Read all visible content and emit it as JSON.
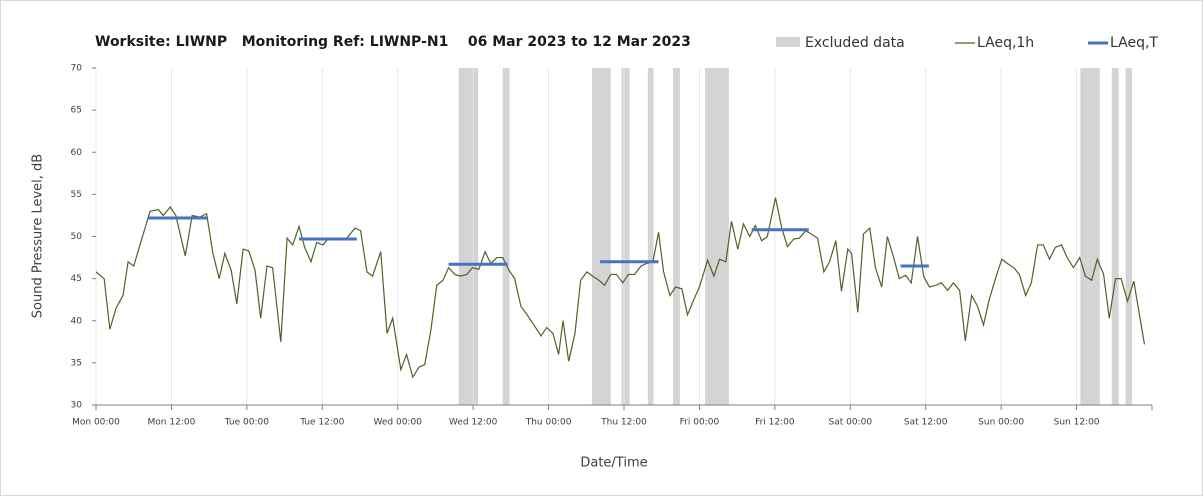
{
  "chart_data": {
    "type": "line",
    "title": "Worksite: LIWNP   Monitoring Ref: LIWNP-N1    06 Mar 2023 to 12 Mar 2023",
    "x_label": "Date/Time",
    "y_label": "Sound Pressure Level, dB",
    "xlim": [
      0,
      168
    ],
    "xticks": [
      {
        "value": 0,
        "label": "Mon 00:00"
      },
      {
        "value": 12,
        "label": "Mon 12:00"
      },
      {
        "value": 24,
        "label": "Tue 00:00"
      },
      {
        "value": 36,
        "label": "Tue 12:00"
      },
      {
        "value": 48,
        "label": "Wed 00:00"
      },
      {
        "value": 60,
        "label": "Wed 12:00"
      },
      {
        "value": 72,
        "label": "Thu 00:00"
      },
      {
        "value": 84,
        "label": "Thu 12:00"
      },
      {
        "value": 96,
        "label": "Fri 00:00"
      },
      {
        "value": 108,
        "label": "Fri 12:00"
      },
      {
        "value": 120,
        "label": "Sat 00:00"
      },
      {
        "value": 132,
        "label": "Sat 12:00"
      },
      {
        "value": 144,
        "label": "Sun 00:00"
      },
      {
        "value": 156,
        "label": "Sun 12:00"
      }
    ],
    "ylim": [
      30,
      70
    ],
    "yticks": [
      30,
      35,
      40,
      45,
      50,
      55,
      60,
      65,
      70
    ],
    "grid": "x",
    "excluded": {
      "name": "Excluded data",
      "color": "#d4d4d4",
      "ranges": [
        [
          57.7,
          60.8
        ],
        [
          64.7,
          65.8
        ],
        [
          78.9,
          81.9
        ],
        [
          83.6,
          84.9
        ],
        [
          87.8,
          88.7
        ],
        [
          91.8,
          92.9
        ],
        [
          96.9,
          100.7
        ],
        [
          156.6,
          159.7
        ],
        [
          161.6,
          162.7
        ],
        [
          163.8,
          164.8
        ]
      ]
    },
    "series": [
      {
        "name": "LAeq,1h",
        "color": "#4f6228",
        "x": [
          0,
          1.3,
          2.2,
          3.2,
          4.3,
          5.1,
          6.0,
          7.0,
          8.6,
          9.9,
          10.7,
          11.8,
          12.7,
          14.2,
          15.3,
          16.5,
          17.6,
          18.6,
          19.6,
          20.5,
          21.5,
          22.4,
          23.4,
          24.3,
          25.3,
          26.2,
          27.2,
          28.1,
          29.4,
          30.4,
          31.3,
          32.3,
          33.2,
          34.2,
          35.1,
          36.1,
          37.0,
          38.0,
          39.9,
          41.2,
          42.1,
          43.1,
          44.0,
          45.3,
          46.3,
          47.2,
          48.5,
          49.4,
          50.4,
          51.4,
          52.3,
          53.3,
          54.2,
          55.2,
          56.1,
          57.1,
          58.0,
          59.0,
          59.9,
          60.9,
          61.9,
          62.8,
          63.8,
          64.7,
          65.7,
          66.6,
          67.6,
          68.5,
          69.5,
          70.8,
          71.7,
          72.7,
          73.6,
          74.3,
          75.2,
          76.2,
          77.1,
          78.1,
          79.0,
          80.0,
          80.9,
          81.9,
          82.8,
          83.8,
          84.7,
          85.7,
          86.7,
          87.6,
          88.6,
          89.5,
          90.3,
          91.3,
          92.2,
          93.2,
          94.1,
          95.1,
          96.0,
          97.3,
          98.3,
          99.2,
          100.2,
          101.1,
          102.1,
          103.0,
          104.0,
          104.9,
          105.9,
          106.8,
          108.1,
          109.1,
          110.0,
          111.0,
          111.9,
          112.9,
          113.8,
          114.8,
          115.8,
          116.7,
          117.7,
          118.6,
          119.6,
          120.2,
          121.2,
          122.1,
          123.1,
          124.0,
          125.0,
          125.9,
          126.9,
          127.8,
          128.8,
          129.7,
          130.7,
          131.7,
          132.6,
          133.6,
          134.5,
          135.5,
          136.4,
          137.4,
          138.3,
          139.3,
          140.2,
          141.2,
          142.1,
          143.1,
          144.1,
          145.0,
          146.0,
          146.9,
          147.9,
          148.8,
          149.8,
          150.7,
          151.7,
          152.6,
          153.6,
          154.5,
          155.5,
          156.5,
          157.4,
          158.4,
          159.3,
          160.3,
          161.2,
          162.2,
          163.1,
          164.1,
          165.1,
          166.8
        ],
        "values": [
          45.8,
          45,
          39,
          41.5,
          43,
          47,
          46.5,
          49,
          53,
          53.2,
          52.5,
          53.5,
          52.5,
          47.7,
          52.5,
          52.3,
          52.7,
          48,
          45,
          48,
          46,
          42,
          48.5,
          48.3,
          46,
          40.3,
          46.5,
          46.3,
          37.5,
          49.8,
          49,
          51.2,
          48.7,
          47,
          49.3,
          49,
          49.8,
          49.8,
          49.8,
          51,
          50.7,
          45.8,
          45.3,
          48.2,
          38.5,
          40.3,
          34.2,
          36,
          33.3,
          34.5,
          34.8,
          39,
          44.2,
          44.8,
          46.3,
          45.5,
          45.3,
          45.5,
          46.3,
          46.1,
          48.2,
          46.8,
          47.5,
          47.5,
          46,
          45,
          41.7,
          40.8,
          39.7,
          38.2,
          39.2,
          38.5,
          36,
          40,
          35.2,
          38.5,
          44.8,
          45.8,
          45.3,
          44.8,
          44.2,
          45.5,
          45.5,
          44.5,
          45.5,
          45.5,
          46.5,
          46.8,
          47,
          50.5,
          45.8,
          43,
          44,
          43.8,
          40.7,
          42.5,
          44,
          47.2,
          45.3,
          47.3,
          47,
          51.8,
          48.5,
          51.5,
          50,
          51.3,
          49.5,
          50,
          54.6,
          51,
          48.8,
          49.7,
          49.8,
          50.7,
          50.3,
          49.8,
          45.8,
          47,
          49.5,
          43.5,
          48.5,
          48,
          41,
          50.3,
          51,
          46.3,
          44,
          50,
          47.5,
          45,
          45.4,
          44.5,
          50,
          45.2,
          44,
          44.2,
          44.5,
          43.6,
          44.5,
          43.6,
          37.6,
          43,
          41.8,
          39.5,
          42.5,
          45,
          47.3,
          46.8,
          46.3,
          45.5,
          43,
          44.5,
          49,
          49,
          47.3,
          48.7,
          49,
          47.5,
          46.3,
          47.5,
          45.3,
          44.8,
          47.3,
          45.5,
          40.3,
          45,
          45,
          42.3,
          44.7,
          37.2
        ]
      },
      {
        "name": "LAeq,T",
        "color": "#4472c4",
        "segments": [
          {
            "x": [
              8.3,
              17.7
            ],
            "value": 52.2
          },
          {
            "x": [
              32.3,
              41.5
            ],
            "value": 49.7
          },
          {
            "x": [
              56.1,
              65.5
            ],
            "value": 46.7
          },
          {
            "x": [
              80.2,
              89.5
            ],
            "value": 47
          },
          {
            "x": [
              104.3,
              113.4
            ],
            "value": 50.8
          },
          {
            "x": [
              128,
              132.5
            ],
            "value": 46.5
          }
        ]
      }
    ]
  }
}
